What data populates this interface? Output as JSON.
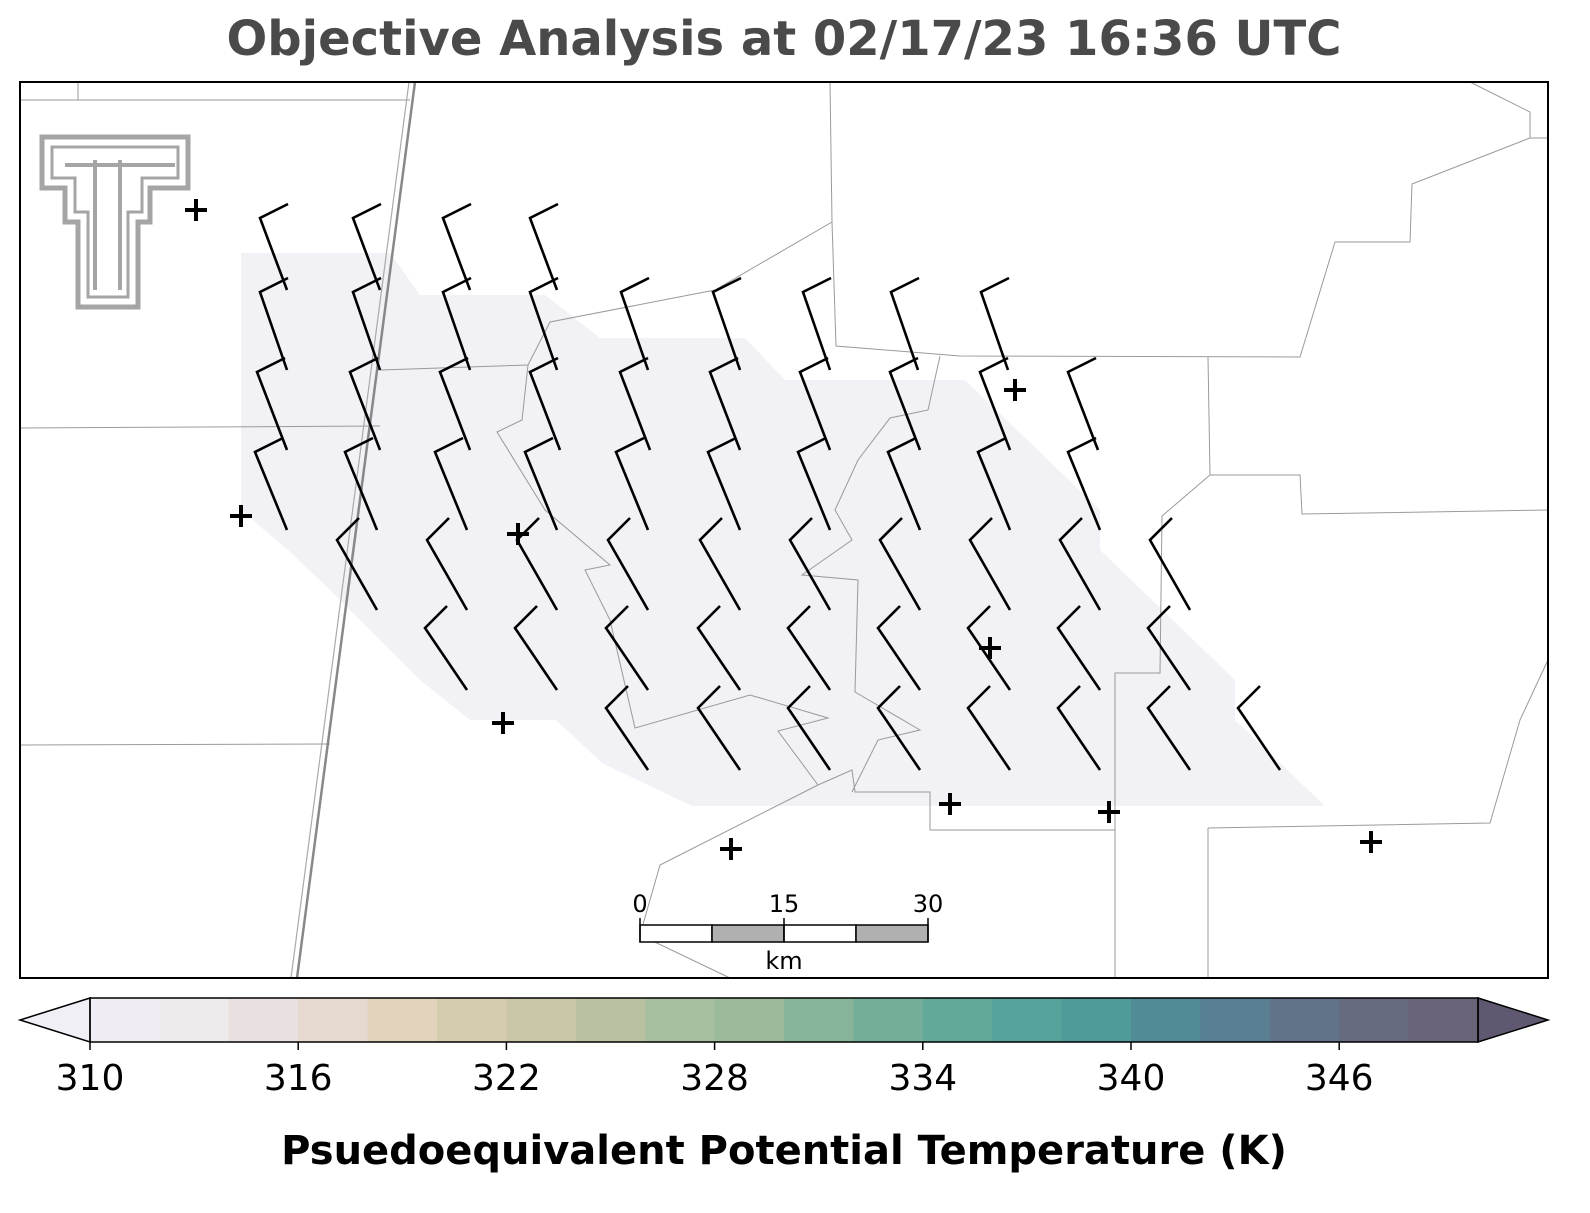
{
  "title": "Objective Analysis at 02/17/23 16:36 UTC",
  "scale_bar": {
    "ticks": [
      0,
      15,
      30
    ],
    "unit": "km"
  },
  "colorbar": {
    "label": "Psuedoequivalent Potential Temperature (K)",
    "lim": [
      310,
      350
    ],
    "ticks": [
      310,
      316,
      322,
      328,
      334,
      340,
      346
    ],
    "under_color": "#f1eff6",
    "over_color": "#5f5870",
    "colors": [
      "#efedf3",
      "#edeaec",
      "#e8e1df",
      "#e6d9cf",
      "#e2d3bc",
      "#d5cbaf",
      "#c8c6a5",
      "#b8c2a2",
      "#a8bf9f",
      "#9bbb9a",
      "#88b49a",
      "#75ae98",
      "#62a99a",
      "#56a39c",
      "#4f9a9b",
      "#508b96",
      "#587f92",
      "#607389",
      "#666b80",
      "#6b6478"
    ]
  }
}
